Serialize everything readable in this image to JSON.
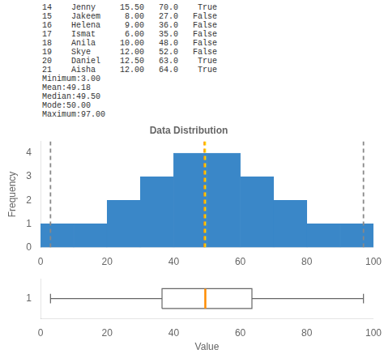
{
  "chart_data": [
    {
      "type": "histogram",
      "title": "Data Distribution",
      "ylabel": "Frequency",
      "annotations": [
        "14    Jenny     15.50   70.0    True",
        "15    Jakeem     8.00   27.0   False",
        "16    Helena     9.00   36.0   False",
        "17    Ismat      6.00   35.0   False",
        "18    Anila     10.00   48.0   False",
        "19    Skye      12.00   52.0   False",
        "20    Daniel    12.50   63.0    True",
        "21    Aisha     12.00   64.0    True",
        "Minimum:3.00",
        "Mean:49.18",
        "Median:49.50",
        "Mode:50.00",
        "Maximum:97.00"
      ],
      "bins": [
        0,
        10,
        20,
        30,
        40,
        50,
        60,
        70,
        80,
        90,
        100
      ],
      "values": [
        1,
        1,
        2,
        3,
        4,
        4,
        3,
        2,
        1,
        1
      ],
      "color": "#3a87c8",
      "vlines": [
        {
          "value": 3.0,
          "color": "#888888",
          "line_style": "dashed"
        },
        {
          "value": 97.0,
          "color": "#888888",
          "line_style": "dashed"
        },
        {
          "value": 49.18,
          "color": "#ff8c00",
          "line_style": "dashed"
        },
        {
          "value": 49.5,
          "color": "#ffd700",
          "line_style": "dashed"
        }
      ],
      "xlim": [
        0,
        100
      ],
      "xticks": [
        0,
        20,
        40,
        60,
        80,
        100
      ],
      "ylim": [
        0,
        4.5
      ],
      "yticks": [
        0,
        1,
        2,
        3,
        4
      ],
      "grid": false
    },
    {
      "type": "box",
      "xlabel": "Value",
      "min": 3.0,
      "q1": 36.5,
      "median": 49.5,
      "q3": 63.5,
      "max": 97.0,
      "color": "#ff8c00",
      "xlim": [
        0,
        100
      ],
      "xticks": [
        0,
        20,
        40,
        60,
        80,
        100
      ],
      "ylim": [
        0.5,
        1.5
      ],
      "yticks": [
        1
      ],
      "grid": false
    }
  ]
}
